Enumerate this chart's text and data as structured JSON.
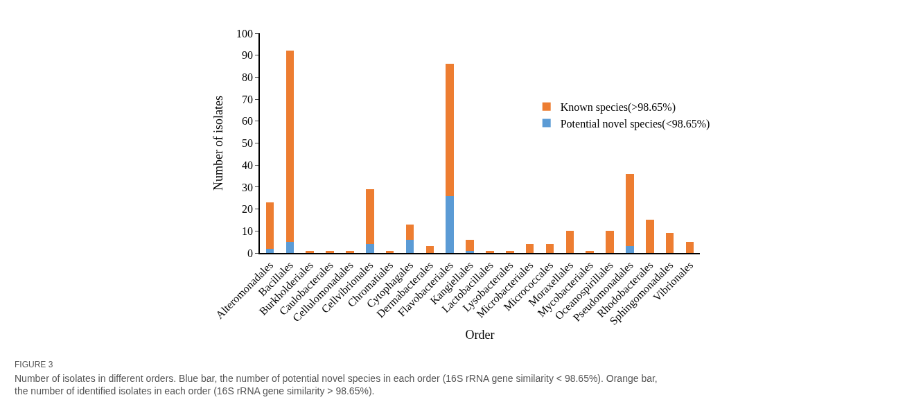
{
  "chart_data": {
    "type": "bar",
    "stacked": true,
    "xlabel": "Order",
    "ylabel": "Number of isolates",
    "categories": [
      "Alteromonadales",
      "Bacillales",
      "Burkholderiales",
      "Caulobacterales",
      "Cellulomonadales",
      "Cellvibrionales",
      "Chromatiales",
      "Cytophagales",
      "Dermabacterales",
      "Flavobacteriales",
      "Kangiellales",
      "Lactobacillales",
      "Lysobacterales",
      "Microbacteriales",
      "Micrococcales",
      "Moraxellales",
      "Mycobacteriales",
      "Oceanospirillales",
      "Pseudomonadales",
      "Rhodobacterales",
      "Sphingomonadales",
      "Vibrionales"
    ],
    "series": [
      {
        "name": "Potential novel species(<98.65%)",
        "color": "#5b9bd5",
        "values": [
          2,
          5,
          0,
          0,
          0,
          4,
          0,
          6,
          0,
          26,
          1,
          0,
          0,
          0,
          0,
          0,
          0,
          0,
          3,
          0,
          0,
          0
        ]
      },
      {
        "name": "Known species(>98.65%)",
        "color": "#ed7d31",
        "values": [
          21,
          87,
          1,
          1,
          1,
          25,
          1,
          7,
          3,
          60,
          5,
          1,
          1,
          4,
          4,
          10,
          1,
          10,
          33,
          15,
          9,
          5
        ]
      }
    ],
    "ylim": [
      0,
      100
    ],
    "yticks": [
      0,
      10,
      20,
      30,
      40,
      50,
      60,
      70,
      80,
      90,
      100
    ],
    "legend": "right",
    "annotations": [
      "FIGURE 3",
      "Number of isolates in different orders. Blue bar, the number of potential novel species in each order (16S rRNA gene similarity < 98.65%). Orange bar, the number of identified isolates in each order (16S rRNA gene similarity > 98.65%)."
    ]
  }
}
